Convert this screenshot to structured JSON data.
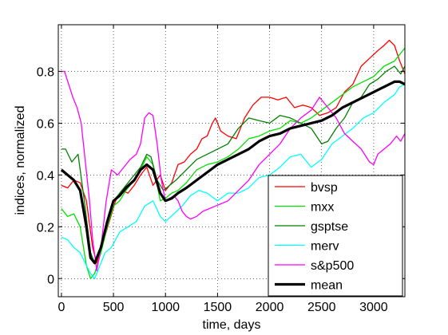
{
  "chart_data": {
    "type": "line",
    "title": "",
    "xlabel": "time, days",
    "ylabel": "indices, normalized",
    "xlim": [
      -30,
      3300
    ],
    "ylim": [
      -0.07,
      0.98
    ],
    "xticks": [
      0,
      500,
      1000,
      1500,
      2000,
      2500,
      3000
    ],
    "yticks": [
      0,
      0.2,
      0.4,
      0.6,
      0.8
    ],
    "xtick_labels": [
      "0",
      "500",
      "1000",
      "1500",
      "2000",
      "2500",
      "3000"
    ],
    "ytick_labels": [
      "0",
      "0.2",
      "0.4",
      "0.6",
      "0.8"
    ],
    "grid": true,
    "legend_position": "bottom-right",
    "series": [
      {
        "name": "bvsp",
        "color": "#ff0000",
        "width": 1.3,
        "x": [
          0,
          60,
          120,
          180,
          240,
          300,
          340,
          400,
          460,
          520,
          580,
          640,
          700,
          760,
          820,
          880,
          950,
          1000,
          1060,
          1120,
          1180,
          1240,
          1300,
          1350,
          1400,
          1450,
          1480,
          1530,
          1600,
          1680,
          1760,
          1840,
          1920,
          2000,
          2080,
          2160,
          2240,
          2320,
          2400,
          2480,
          2560,
          2640,
          2720,
          2800,
          2880,
          2960,
          3040,
          3100,
          3150,
          3200,
          3250,
          3300
        ],
        "values": [
          0.36,
          0.35,
          0.38,
          0.37,
          0.3,
          0.12,
          0.06,
          0.14,
          0.22,
          0.3,
          0.34,
          0.33,
          0.36,
          0.4,
          0.43,
          0.36,
          0.4,
          0.34,
          0.37,
          0.44,
          0.45,
          0.48,
          0.5,
          0.54,
          0.55,
          0.6,
          0.62,
          0.57,
          0.55,
          0.54,
          0.62,
          0.67,
          0.7,
          0.7,
          0.69,
          0.7,
          0.66,
          0.67,
          0.66,
          0.63,
          0.64,
          0.66,
          0.72,
          0.75,
          0.82,
          0.85,
          0.88,
          0.9,
          0.92,
          0.9,
          0.84,
          0.79
        ]
      },
      {
        "name": "mxx",
        "color": "#00e000",
        "width": 1.3,
        "x": [
          0,
          60,
          120,
          180,
          240,
          280,
          320,
          380,
          440,
          500,
          560,
          620,
          700,
          760,
          820,
          880,
          950,
          1000,
          1060,
          1120,
          1200,
          1300,
          1400,
          1500,
          1600,
          1700,
          1800,
          1900,
          2000,
          2100,
          2200,
          2300,
          2400,
          2500,
          2600,
          2700,
          2800,
          2900,
          3000,
          3100,
          3200,
          3300
        ],
        "values": [
          0.27,
          0.24,
          0.25,
          0.2,
          0.05,
          0.0,
          0.02,
          0.1,
          0.2,
          0.28,
          0.3,
          0.34,
          0.38,
          0.42,
          0.47,
          0.44,
          0.3,
          0.31,
          0.33,
          0.34,
          0.37,
          0.42,
          0.44,
          0.45,
          0.47,
          0.5,
          0.54,
          0.55,
          0.57,
          0.58,
          0.61,
          0.6,
          0.62,
          0.65,
          0.68,
          0.71,
          0.74,
          0.76,
          0.78,
          0.82,
          0.84,
          0.89
        ]
      },
      {
        "name": "gsptse",
        "color": "#008000",
        "width": 1.3,
        "x": [
          0,
          40,
          100,
          160,
          220,
          280,
          320,
          380,
          440,
          500,
          560,
          620,
          700,
          760,
          820,
          860,
          920,
          980,
          1040,
          1100,
          1200,
          1300,
          1400,
          1500,
          1600,
          1700,
          1800,
          1900,
          2000,
          2100,
          2200,
          2300,
          2400,
          2500,
          2560,
          2640,
          2720,
          2800,
          2880,
          2960,
          3040,
          3120,
          3200,
          3260,
          3300
        ],
        "values": [
          0.5,
          0.5,
          0.45,
          0.48,
          0.3,
          0.1,
          0.06,
          0.12,
          0.22,
          0.3,
          0.33,
          0.36,
          0.4,
          0.43,
          0.48,
          0.47,
          0.38,
          0.34,
          0.36,
          0.38,
          0.42,
          0.46,
          0.48,
          0.5,
          0.52,
          0.58,
          0.62,
          0.61,
          0.6,
          0.63,
          0.62,
          0.6,
          0.58,
          0.52,
          0.53,
          0.58,
          0.62,
          0.68,
          0.7,
          0.75,
          0.77,
          0.8,
          0.82,
          0.79,
          0.82
        ]
      },
      {
        "name": "merv",
        "color": "#00ffff",
        "width": 1.3,
        "x": [
          0,
          60,
          120,
          180,
          240,
          280,
          320,
          360,
          420,
          480,
          560,
          640,
          720,
          800,
          880,
          950,
          1000,
          1080,
          1160,
          1240,
          1320,
          1400,
          1500,
          1600,
          1700,
          1800,
          1900,
          2000,
          2100,
          2200,
          2300,
          2400,
          2500,
          2600,
          2700,
          2800,
          2900,
          3000,
          3100,
          3200,
          3250,
          3300
        ],
        "values": [
          0.16,
          0.15,
          0.12,
          0.1,
          0.05,
          0.02,
          0.0,
          0.04,
          0.1,
          0.12,
          0.18,
          0.2,
          0.22,
          0.28,
          0.3,
          0.24,
          0.22,
          0.25,
          0.28,
          0.32,
          0.34,
          0.33,
          0.3,
          0.33,
          0.33,
          0.35,
          0.39,
          0.4,
          0.43,
          0.47,
          0.48,
          0.43,
          0.46,
          0.52,
          0.55,
          0.58,
          0.62,
          0.64,
          0.68,
          0.71,
          0.74,
          0.75
        ]
      },
      {
        "name": "s&p500",
        "color": "#ff00ff",
        "width": 1.3,
        "x": [
          0,
          30,
          70,
          110,
          150,
          190,
          230,
          270,
          300,
          340,
          380,
          430,
          480,
          540,
          600,
          660,
          720,
          760,
          800,
          840,
          880,
          920,
          960,
          1000,
          1040,
          1080,
          1120,
          1160,
          1200,
          1240,
          1300,
          1360,
          1420,
          1480,
          1540,
          1600,
          1700,
          1800,
          1900,
          2000,
          2100,
          2200,
          2300,
          2400,
          2480,
          2560,
          2640,
          2720,
          2800,
          2880,
          2960,
          3000,
          3040,
          3100,
          3160,
          3220,
          3260,
          3300
        ],
        "values": [
          0.8,
          0.8,
          0.75,
          0.7,
          0.66,
          0.6,
          0.45,
          0.3,
          0.15,
          0.03,
          0.12,
          0.3,
          0.42,
          0.4,
          0.43,
          0.46,
          0.48,
          0.52,
          0.62,
          0.64,
          0.63,
          0.52,
          0.38,
          0.3,
          0.31,
          0.32,
          0.3,
          0.26,
          0.24,
          0.23,
          0.24,
          0.26,
          0.27,
          0.28,
          0.29,
          0.3,
          0.34,
          0.38,
          0.44,
          0.48,
          0.52,
          0.58,
          0.62,
          0.65,
          0.7,
          0.66,
          0.62,
          0.56,
          0.53,
          0.5,
          0.45,
          0.44,
          0.48,
          0.5,
          0.52,
          0.55,
          0.53,
          0.56
        ]
      },
      {
        "name": "mean",
        "color": "#000000",
        "width": 3.2,
        "x": [
          0,
          60,
          120,
          180,
          240,
          280,
          320,
          380,
          440,
          500,
          560,
          620,
          700,
          760,
          820,
          880,
          950,
          1000,
          1060,
          1120,
          1200,
          1300,
          1400,
          1500,
          1600,
          1700,
          1800,
          1900,
          2000,
          2100,
          2200,
          2300,
          2400,
          2500,
          2600,
          2700,
          2800,
          2900,
          3000,
          3100,
          3200,
          3250,
          3300
        ],
        "values": [
          0.42,
          0.4,
          0.38,
          0.34,
          0.2,
          0.08,
          0.06,
          0.12,
          0.22,
          0.3,
          0.32,
          0.35,
          0.38,
          0.42,
          0.44,
          0.42,
          0.33,
          0.3,
          0.31,
          0.33,
          0.35,
          0.38,
          0.41,
          0.44,
          0.46,
          0.48,
          0.5,
          0.53,
          0.55,
          0.56,
          0.58,
          0.59,
          0.6,
          0.61,
          0.63,
          0.66,
          0.68,
          0.7,
          0.72,
          0.74,
          0.76,
          0.76,
          0.75
        ]
      }
    ]
  }
}
